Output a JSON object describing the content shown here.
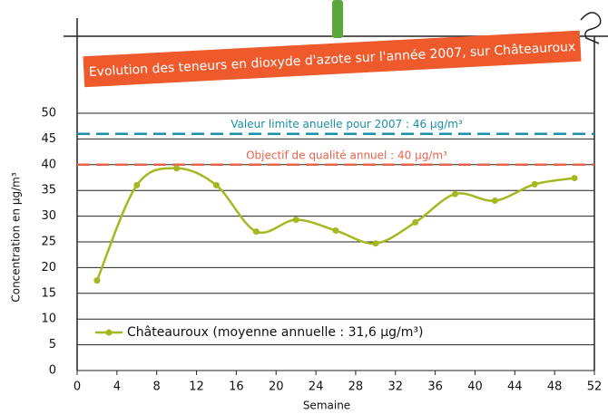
{
  "chart_data": {
    "type": "line",
    "title": "Evolution des teneurs en dioxyde d'azote sur l'année 2007, sur Châteauroux",
    "x_label": "Semaine",
    "y_label": "Concentration en µg/m³",
    "x": [
      2,
      6,
      10,
      14,
      18,
      22,
      26,
      30,
      34,
      38,
      42,
      46,
      50
    ],
    "series": [
      {
        "name": "Châteauroux (moyenne annuelle : 31,6 µg/m³)",
        "color": "#a6b81f",
        "values": [
          17.5,
          36,
          39.3,
          36,
          27,
          29.3,
          27.2,
          24.7,
          28.8,
          34.3,
          33,
          36.2,
          37.4
        ]
      }
    ],
    "reference_lines": [
      {
        "value": 46,
        "label": "Valeur limite anuelle pour 2007 : 46 µg/m³",
        "color": "#1a8fa8"
      },
      {
        "value": 40,
        "label": "Objectif de qualité annuel : 40 µg/m³",
        "color": "#e8624a"
      }
    ],
    "xlim": [
      0,
      52
    ],
    "xticks": [
      0,
      4,
      8,
      12,
      16,
      20,
      24,
      28,
      32,
      36,
      40,
      44,
      48,
      52
    ],
    "ylim": [
      0,
      50
    ],
    "yticks": [
      0,
      5,
      10,
      15,
      20,
      25,
      30,
      35,
      40,
      45,
      50
    ],
    "grid": true
  }
}
